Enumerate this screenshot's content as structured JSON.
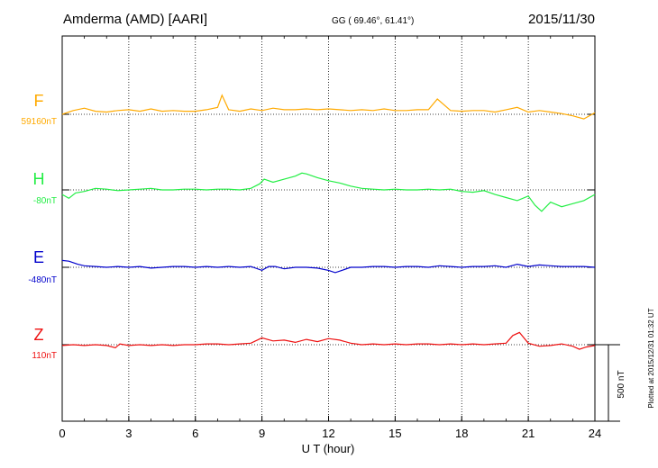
{
  "header": {
    "station": "Amderma (AMD)  [AARI]",
    "coords": "GG ( 69.46°,  61.41°)",
    "date": "2015/11/30"
  },
  "plotted_note": "Plotted at 2015/12/31 01:32 UT",
  "scale_label": "500 nT",
  "chart_data": {
    "type": "line",
    "xlabel": "U T (hour)",
    "xlim": [
      0,
      24
    ],
    "x_ticks": [
      "0",
      "3",
      "6",
      "9",
      "12",
      "15",
      "18",
      "21",
      "24"
    ],
    "units_per_band": 500,
    "grid": true,
    "series": [
      {
        "name": "F",
        "baseline_label": "59160nT",
        "color": "#ffaa00",
        "x": [
          0,
          0.5,
          1,
          1.5,
          2,
          2.5,
          3,
          3.5,
          4,
          4.5,
          5,
          5.5,
          6,
          6.5,
          7,
          7.2,
          7.5,
          8,
          8.5,
          9,
          9.5,
          10,
          10.5,
          11,
          11.5,
          12,
          12.5,
          13,
          13.5,
          14,
          14.5,
          15,
          15.5,
          16,
          16.5,
          16.9,
          17.5,
          18,
          18.5,
          19,
          19.5,
          20,
          20.5,
          21,
          21.5,
          22,
          22.5,
          23,
          23.5,
          24
        ],
        "values": [
          0,
          25,
          40,
          20,
          15,
          25,
          30,
          20,
          35,
          20,
          25,
          20,
          20,
          30,
          45,
          125,
          30,
          20,
          35,
          25,
          40,
          30,
          30,
          35,
          30,
          35,
          30,
          25,
          30,
          25,
          35,
          25,
          25,
          30,
          30,
          100,
          25,
          20,
          25,
          25,
          15,
          30,
          45,
          15,
          25,
          15,
          5,
          -10,
          -30,
          10
        ]
      },
      {
        "name": "H",
        "baseline_label": "-80nT",
        "color": "#22ee44",
        "x": [
          0,
          0.3,
          0.6,
          1,
          1.5,
          2,
          2.5,
          3,
          3.5,
          4,
          4.5,
          5,
          5.5,
          6,
          6.5,
          7,
          7.5,
          8,
          8.5,
          8.9,
          9.1,
          9.5,
          10,
          10.5,
          10.8,
          11,
          11.5,
          12,
          12.5,
          13,
          13.5,
          14,
          14.5,
          15,
          15.5,
          16,
          16.5,
          17,
          17.5,
          18,
          18.5,
          19,
          19.5,
          20,
          20.5,
          21,
          21.3,
          21.6,
          22,
          22.5,
          23,
          23.5,
          24
        ],
        "values": [
          -30,
          -55,
          -20,
          -10,
          10,
          5,
          -5,
          0,
          5,
          10,
          0,
          0,
          5,
          5,
          0,
          5,
          5,
          0,
          10,
          40,
          70,
          50,
          70,
          90,
          110,
          105,
          80,
          60,
          45,
          25,
          10,
          5,
          0,
          5,
          0,
          0,
          5,
          0,
          5,
          -10,
          -15,
          -5,
          -30,
          -50,
          -70,
          -40,
          -100,
          -140,
          -80,
          -110,
          -90,
          -70,
          -30
        ]
      },
      {
        "name": "E",
        "baseline_label": "-480nT",
        "color": "#0000cc",
        "x": [
          0,
          0.3,
          0.7,
          1,
          1.5,
          2,
          2.5,
          3,
          3.5,
          4,
          4.5,
          5,
          5.5,
          6,
          6.5,
          7,
          7.5,
          8,
          8.5,
          9,
          9.3,
          9.6,
          10,
          10.5,
          11,
          11.5,
          12,
          12.3,
          12.6,
          13,
          13.5,
          14,
          14.5,
          15,
          15.5,
          16,
          16.5,
          17,
          17.5,
          18,
          18.5,
          19,
          19.5,
          20,
          20.5,
          21,
          21.5,
          22,
          22.5,
          23,
          23.5,
          24
        ],
        "values": [
          45,
          40,
          20,
          10,
          5,
          0,
          5,
          0,
          5,
          -5,
          0,
          5,
          5,
          0,
          5,
          0,
          5,
          0,
          5,
          -20,
          5,
          5,
          -10,
          0,
          0,
          -5,
          -20,
          -35,
          -20,
          0,
          0,
          5,
          5,
          0,
          5,
          5,
          0,
          10,
          5,
          0,
          5,
          5,
          10,
          0,
          20,
          5,
          15,
          10,
          5,
          5,
          5,
          0
        ]
      },
      {
        "name": "Z",
        "baseline_label": "110nT",
        "color": "#ee1111",
        "x": [
          0,
          0.5,
          1,
          1.5,
          2,
          2.4,
          2.6,
          3,
          3.5,
          4,
          4.5,
          5,
          5.5,
          6,
          6.5,
          7,
          7.5,
          8,
          8.5,
          9,
          9.5,
          10,
          10.5,
          11,
          11.5,
          12,
          12.5,
          13,
          13.5,
          14,
          14.5,
          15,
          15.5,
          16,
          16.5,
          17,
          17.5,
          18,
          18.5,
          19,
          19.5,
          20,
          20.3,
          20.6,
          21,
          21.5,
          22,
          22.5,
          23,
          23.3,
          23.6,
          24
        ],
        "values": [
          -5,
          0,
          -5,
          0,
          -5,
          -20,
          5,
          -5,
          0,
          -5,
          0,
          -5,
          0,
          0,
          5,
          5,
          0,
          5,
          10,
          45,
          25,
          30,
          15,
          35,
          20,
          40,
          30,
          10,
          0,
          5,
          0,
          5,
          0,
          5,
          5,
          0,
          5,
          0,
          5,
          0,
          5,
          10,
          60,
          80,
          10,
          -10,
          -5,
          5,
          -10,
          -30,
          -15,
          -5
        ]
      }
    ]
  }
}
